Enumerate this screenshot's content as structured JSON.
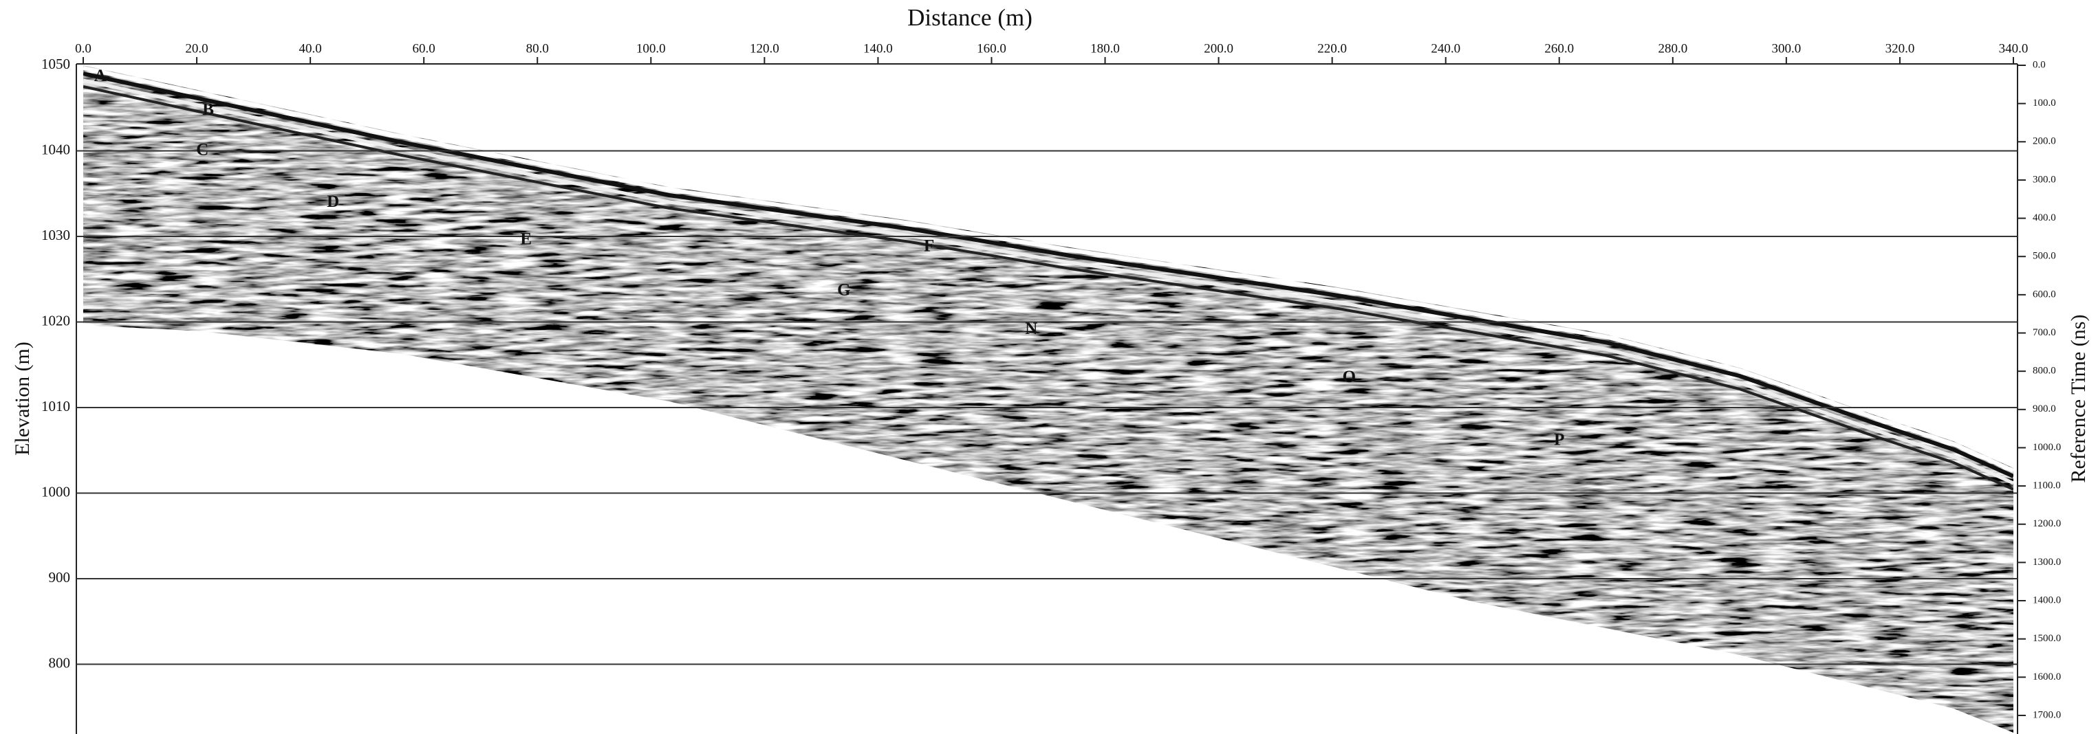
{
  "chart_data": {
    "type": "radargram",
    "title": "Distance (m)",
    "ylabel": "Elevation (m)",
    "y2label": "Reference Time (ns)",
    "xlim": [
      0,
      340
    ],
    "xticks": [
      {
        "value": 0,
        "label": "0.0"
      },
      {
        "value": 20,
        "label": "20.0"
      },
      {
        "value": 40,
        "label": "40.0"
      },
      {
        "value": 60,
        "label": "60.0"
      },
      {
        "value": 80,
        "label": "80.0"
      },
      {
        "value": 100,
        "label": "100.0"
      },
      {
        "value": 120,
        "label": "120.0"
      },
      {
        "value": 140,
        "label": "140.0"
      },
      {
        "value": 160,
        "label": "160.0"
      },
      {
        "value": 180,
        "label": "180.0"
      },
      {
        "value": 200,
        "label": "200.0"
      },
      {
        "value": 220,
        "label": "220.0"
      },
      {
        "value": 240,
        "label": "240.0"
      },
      {
        "value": 260,
        "label": "260.0"
      },
      {
        "value": 280,
        "label": "280.0"
      },
      {
        "value": 300,
        "label": "300.0"
      },
      {
        "value": 320,
        "label": "320.0"
      },
      {
        "value": 340,
        "label": "340.0"
      }
    ],
    "y_labels": [
      "1050",
      "1040",
      "1030",
      "1020",
      "1010",
      "1000",
      "900",
      "800"
    ],
    "y2lim": [
      0,
      1745
    ],
    "y2ticks": [
      {
        "value": 0,
        "label": "0.0"
      },
      {
        "value": 100,
        "label": "100.0"
      },
      {
        "value": 200,
        "label": "200.0"
      },
      {
        "value": 300,
        "label": "300.0"
      },
      {
        "value": 400,
        "label": "400.0"
      },
      {
        "value": 500,
        "label": "500.0"
      },
      {
        "value": 600,
        "label": "600.0"
      },
      {
        "value": 700,
        "label": "700.0"
      },
      {
        "value": 800,
        "label": "800.0"
      },
      {
        "value": 900,
        "label": "900.0"
      },
      {
        "value": 1000,
        "label": "1000.0"
      },
      {
        "value": 1100,
        "label": "1100.0"
      },
      {
        "value": 1200,
        "label": "1200.0"
      },
      {
        "value": 1300,
        "label": "1300.0"
      },
      {
        "value": 1400,
        "label": "1400.0"
      },
      {
        "value": 1500,
        "label": "1500.0"
      },
      {
        "value": 1600,
        "label": "1600.0"
      },
      {
        "value": 1700,
        "label": "1700.0"
      }
    ],
    "annotations": [
      {
        "text": "A",
        "x": 3,
        "y": 31
      },
      {
        "text": "B",
        "x": 22,
        "y": 119
      },
      {
        "text": "C",
        "x": 21,
        "y": 224
      },
      {
        "text": "D",
        "x": 44,
        "y": 360
      },
      {
        "text": "E",
        "x": 78,
        "y": 458
      },
      {
        "text": "F",
        "x": 149,
        "y": 476
      },
      {
        "text": "G",
        "x": 134,
        "y": 591
      },
      {
        "text": "N",
        "x": 167,
        "y": 692
      },
      {
        "text": "O",
        "x": 223,
        "y": 818
      },
      {
        "text": "P",
        "x": 260,
        "y": 983
      }
    ]
  }
}
